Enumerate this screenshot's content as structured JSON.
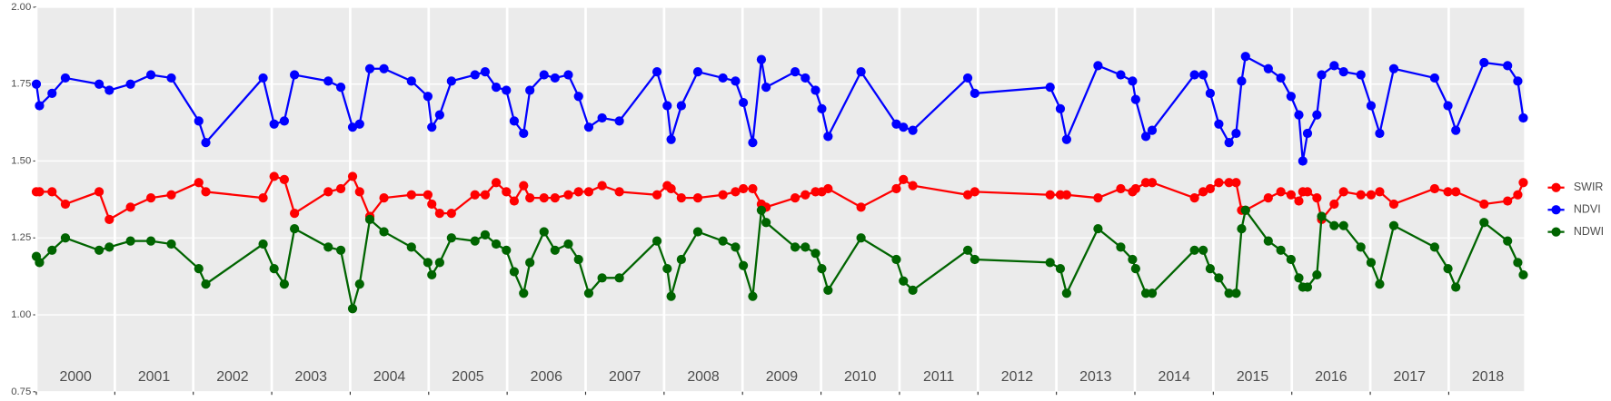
{
  "chart_data": {
    "type": "line",
    "x": [
      2000.0,
      2000.04,
      2000.2,
      2000.37,
      2000.8,
      2000.93,
      2001.2,
      2001.46,
      2001.72,
      2002.07,
      2002.16,
      2002.89,
      2003.03,
      2003.16,
      2003.29,
      2003.72,
      2003.88,
      2004.03,
      2004.12,
      2004.25,
      2004.43,
      2004.78,
      2004.99,
      2005.04,
      2005.14,
      2005.29,
      2005.59,
      2005.72,
      2005.86,
      2005.99,
      2006.09,
      2006.21,
      2006.29,
      2006.47,
      2006.61,
      2006.78,
      2006.91,
      2007.04,
      2007.21,
      2007.43,
      2007.91,
      2008.04,
      2008.09,
      2008.22,
      2008.43,
      2008.75,
      2008.91,
      2009.01,
      2009.13,
      2009.24,
      2009.3,
      2009.67,
      2009.8,
      2009.93,
      2010.01,
      2010.09,
      2010.51,
      2010.96,
      2011.05,
      2011.17,
      2011.87,
      2011.96,
      2012.92,
      2013.05,
      2013.13,
      2013.53,
      2013.82,
      2013.97,
      2014.01,
      2014.14,
      2014.22,
      2014.76,
      2014.87,
      2014.96,
      2015.07,
      2015.2,
      2015.29,
      2015.36,
      2015.41,
      2015.7,
      2015.86,
      2015.99,
      2016.09,
      2016.14,
      2016.2,
      2016.32,
      2016.38,
      2016.54,
      2016.66,
      2016.88,
      2017.01,
      2017.12,
      2017.3,
      2017.82,
      2017.99,
      2018.09,
      2018.45,
      2018.75,
      2018.88,
      2018.95
    ],
    "series": [
      {
        "name": "SWIR",
        "color": "#ff0000",
        "values": [
          1.4,
          1.4,
          1.4,
          1.36,
          1.4,
          1.31,
          1.35,
          1.38,
          1.39,
          1.43,
          1.4,
          1.38,
          1.45,
          1.44,
          1.33,
          1.4,
          1.41,
          1.45,
          1.4,
          1.32,
          1.38,
          1.39,
          1.39,
          1.36,
          1.33,
          1.33,
          1.39,
          1.39,
          1.43,
          1.4,
          1.37,
          1.42,
          1.38,
          1.38,
          1.38,
          1.39,
          1.4,
          1.4,
          1.42,
          1.4,
          1.39,
          1.42,
          1.41,
          1.38,
          1.38,
          1.39,
          1.4,
          1.41,
          1.41,
          1.36,
          1.35,
          1.38,
          1.39,
          1.4,
          1.4,
          1.41,
          1.35,
          1.41,
          1.44,
          1.42,
          1.39,
          1.4,
          1.39,
          1.39,
          1.39,
          1.38,
          1.41,
          1.4,
          1.41,
          1.43,
          1.43,
          1.38,
          1.4,
          1.41,
          1.43,
          1.43,
          1.43,
          1.34,
          1.34,
          1.38,
          1.4,
          1.39,
          1.37,
          1.4,
          1.4,
          1.38,
          1.31,
          1.36,
          1.4,
          1.39,
          1.39,
          1.4,
          1.36,
          1.41,
          1.4,
          1.4,
          1.36,
          1.37,
          1.39,
          1.43
        ]
      },
      {
        "name": "NDVI",
        "color": "#0000ff",
        "values": [
          1.75,
          1.68,
          1.72,
          1.77,
          1.75,
          1.73,
          1.75,
          1.78,
          1.77,
          1.63,
          1.56,
          1.77,
          1.62,
          1.63,
          1.78,
          1.76,
          1.74,
          1.61,
          1.62,
          1.8,
          1.8,
          1.76,
          1.71,
          1.61,
          1.65,
          1.76,
          1.78,
          1.79,
          1.74,
          1.73,
          1.63,
          1.59,
          1.73,
          1.78,
          1.77,
          1.78,
          1.71,
          1.61,
          1.64,
          1.63,
          1.79,
          1.68,
          1.57,
          1.68,
          1.79,
          1.77,
          1.76,
          1.69,
          1.56,
          1.83,
          1.74,
          1.79,
          1.77,
          1.73,
          1.67,
          1.58,
          1.79,
          1.62,
          1.61,
          1.6,
          1.77,
          1.72,
          1.74,
          1.67,
          1.57,
          1.81,
          1.78,
          1.76,
          1.7,
          1.58,
          1.6,
          1.78,
          1.78,
          1.72,
          1.62,
          1.56,
          1.59,
          1.76,
          1.84,
          1.8,
          1.77,
          1.71,
          1.65,
          1.5,
          1.59,
          1.65,
          1.78,
          1.81,
          1.79,
          1.78,
          1.68,
          1.59,
          1.8,
          1.77,
          1.68,
          1.6,
          1.82,
          1.81,
          1.76,
          1.64
        ]
      },
      {
        "name": "NDWI",
        "color": "#006400",
        "values": [
          1.19,
          1.17,
          1.21,
          1.25,
          1.21,
          1.22,
          1.24,
          1.24,
          1.23,
          1.15,
          1.1,
          1.23,
          1.15,
          1.1,
          1.28,
          1.22,
          1.21,
          1.02,
          1.1,
          1.31,
          1.27,
          1.22,
          1.17,
          1.13,
          1.17,
          1.25,
          1.24,
          1.26,
          1.23,
          1.21,
          1.14,
          1.07,
          1.17,
          1.27,
          1.21,
          1.23,
          1.18,
          1.07,
          1.12,
          1.12,
          1.24,
          1.15,
          1.06,
          1.18,
          1.27,
          1.24,
          1.22,
          1.16,
          1.06,
          1.34,
          1.3,
          1.22,
          1.22,
          1.2,
          1.15,
          1.08,
          1.25,
          1.18,
          1.11,
          1.08,
          1.21,
          1.18,
          1.17,
          1.15,
          1.07,
          1.28,
          1.22,
          1.18,
          1.15,
          1.07,
          1.07,
          1.21,
          1.21,
          1.15,
          1.12,
          1.07,
          1.07,
          1.28,
          1.34,
          1.24,
          1.21,
          1.18,
          1.12,
          1.09,
          1.09,
          1.13,
          1.32,
          1.29,
          1.29,
          1.22,
          1.17,
          1.1,
          1.29,
          1.22,
          1.15,
          1.09,
          1.3,
          1.24,
          1.17,
          1.13
        ]
      }
    ],
    "xlim": [
      2000,
      2018.96
    ],
    "xticks": [
      {
        "value": 2000,
        "label": "2000"
      },
      {
        "value": 2001,
        "label": "2001"
      },
      {
        "value": 2002,
        "label": "2002"
      },
      {
        "value": 2003,
        "label": "2003"
      },
      {
        "value": 2004,
        "label": "2004"
      },
      {
        "value": 2005,
        "label": "2005"
      },
      {
        "value": 2006,
        "label": "2006"
      },
      {
        "value": 2007,
        "label": "2007"
      },
      {
        "value": 2008,
        "label": "2008"
      },
      {
        "value": 2009,
        "label": "2009"
      },
      {
        "value": 2010,
        "label": "2010"
      },
      {
        "value": 2011,
        "label": "2011"
      },
      {
        "value": 2012,
        "label": "2012"
      },
      {
        "value": 2013,
        "label": "2013"
      },
      {
        "value": 2014,
        "label": "2014"
      },
      {
        "value": 2015,
        "label": "2015"
      },
      {
        "value": 2016,
        "label": "2016"
      },
      {
        "value": 2017,
        "label": "2017"
      },
      {
        "value": 2018,
        "label": "2018"
      }
    ],
    "ylim": [
      0.75,
      2.0
    ],
    "yticks": [
      {
        "value": 0.75,
        "label": "0.75"
      },
      {
        "value": 1.0,
        "label": "1.00"
      },
      {
        "value": 1.25,
        "label": "1.25"
      },
      {
        "value": 1.5,
        "label": "1.50"
      },
      {
        "value": 1.75,
        "label": "1.75"
      },
      {
        "value": 2.0,
        "label": "2.00"
      }
    ],
    "grid": true,
    "legend": "right"
  }
}
